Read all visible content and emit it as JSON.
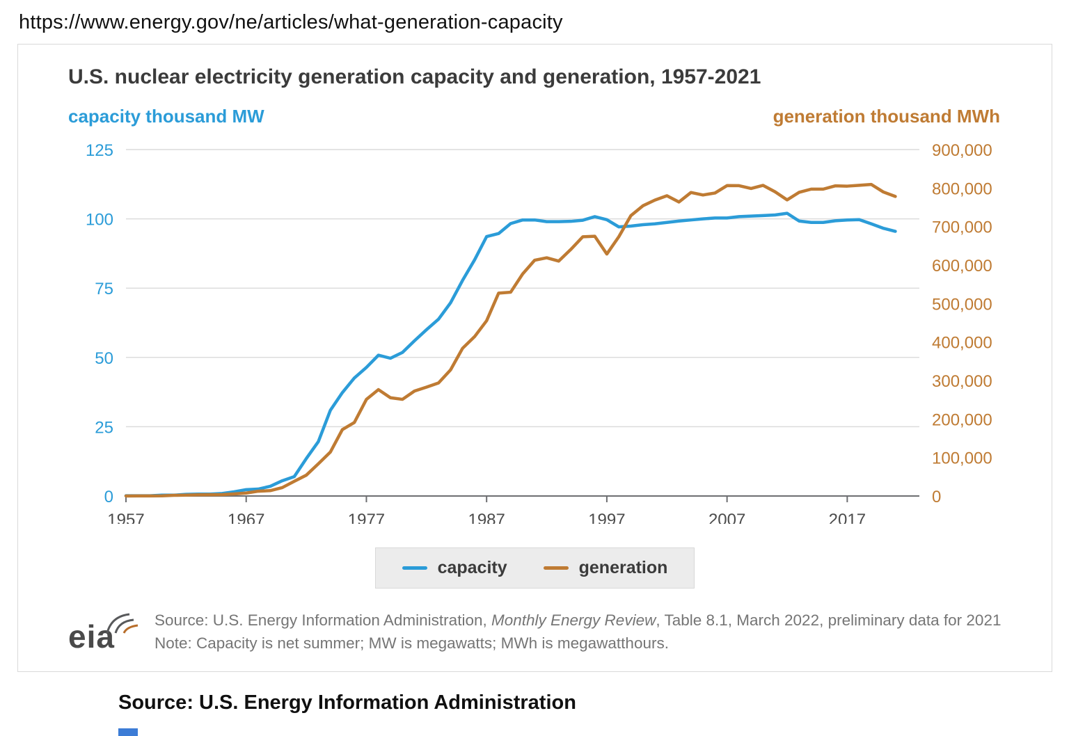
{
  "page": {
    "url": "https://www.energy.gov/ne/articles/what-generation-capacity"
  },
  "chart_data": {
    "type": "line",
    "title": "U.S. nuclear electricity generation capacity and generation, 1957-2021",
    "grid": "horizontal",
    "legend_position": "bottom-center",
    "x_range": [
      1957,
      2023
    ],
    "x_ticks": [
      1957,
      1967,
      1977,
      1987,
      1997,
      2007,
      2017
    ],
    "x": [
      1957,
      1958,
      1959,
      1960,
      1961,
      1962,
      1963,
      1964,
      1965,
      1966,
      1967,
      1968,
      1969,
      1970,
      1971,
      1972,
      1973,
      1974,
      1975,
      1976,
      1977,
      1978,
      1979,
      1980,
      1981,
      1982,
      1983,
      1984,
      1985,
      1986,
      1987,
      1988,
      1989,
      1990,
      1991,
      1992,
      1993,
      1994,
      1995,
      1996,
      1997,
      1998,
      1999,
      2000,
      2001,
      2002,
      2003,
      2004,
      2005,
      2006,
      2007,
      2008,
      2009,
      2010,
      2011,
      2012,
      2013,
      2014,
      2015,
      2016,
      2017,
      2018,
      2019,
      2020,
      2021
    ],
    "left_axis": {
      "label": "capacity thousand MW",
      "min": 0,
      "max": 125,
      "ticks": [
        0,
        25,
        50,
        75,
        100,
        125
      ]
    },
    "right_axis": {
      "label": "generation thousand MWh",
      "min": 0,
      "max": 900000,
      "ticks": [
        0,
        100000,
        200000,
        300000,
        400000,
        500000,
        600000,
        700000,
        800000,
        900000
      ]
    },
    "series": [
      {
        "name": "capacity",
        "axis": "left",
        "unit": "thousand MW",
        "color": "#2b9cd8",
        "values": [
          0.1,
          0.1,
          0.1,
          0.3,
          0.3,
          0.6,
          0.7,
          0.7,
          0.9,
          1.5,
          2.3,
          2.5,
          3.5,
          5.5,
          7.0,
          13.5,
          19.6,
          30.9,
          37.3,
          42.6,
          46.4,
          50.8,
          49.7,
          51.8,
          56.0,
          60.0,
          63.8,
          69.7,
          77.8,
          85.2,
          93.6,
          94.7,
          98.3,
          99.6,
          99.6,
          99.0,
          99.0,
          99.1,
          99.5,
          100.8,
          99.7,
          97.1,
          97.4,
          97.9,
          98.2,
          98.7,
          99.2,
          99.6,
          100.0,
          100.3,
          100.3,
          100.8,
          101.0,
          101.2,
          101.4,
          102.0,
          99.2,
          98.7,
          98.7,
          99.3,
          99.6,
          99.7,
          98.2,
          96.6,
          95.5
        ]
      },
      {
        "name": "generation",
        "axis": "right",
        "unit": "thousand MWh",
        "color": "#bf7b33",
        "values": [
          100,
          200,
          200,
          500,
          1700,
          2300,
          3200,
          3300,
          3700,
          5500,
          7700,
          12500,
          13900,
          21800,
          38100,
          54100,
          83500,
          114000,
          172500,
          191100,
          250900,
          276400,
          255200,
          251100,
          272700,
          282800,
          293700,
          327600,
          383700,
          414000,
          455300,
          527000,
          529400,
          576900,
          612600,
          618800,
          610300,
          640400,
          673400,
          674700,
          628600,
          673700,
          728300,
          753900,
          768800,
          780100,
          763700,
          788500,
          782000,
          787200,
          806400,
          806200,
          798900,
          807000,
          790200,
          769300,
          789000,
          797200,
          797200,
          805700,
          805000,
          807100,
          809400,
          789900,
          778200
        ]
      }
    ],
    "colors": {
      "grid": "#dcdcdc",
      "axis": "#6d6e71",
      "x_tick_text": "#4b4b4b"
    }
  },
  "source": {
    "logo_text": "eia",
    "line1_prefix": "Source: U.S. Energy Information Administration, ",
    "line1_italic": "Monthly Energy Review",
    "line1_suffix": ", Table 8.1, March 2022, preliminary data for 2021",
    "note": "Note: Capacity is net summer; MW is megawatts; MWh is megawatthours."
  },
  "caption": {
    "text": "Source: U.S. Energy Information Administration"
  }
}
